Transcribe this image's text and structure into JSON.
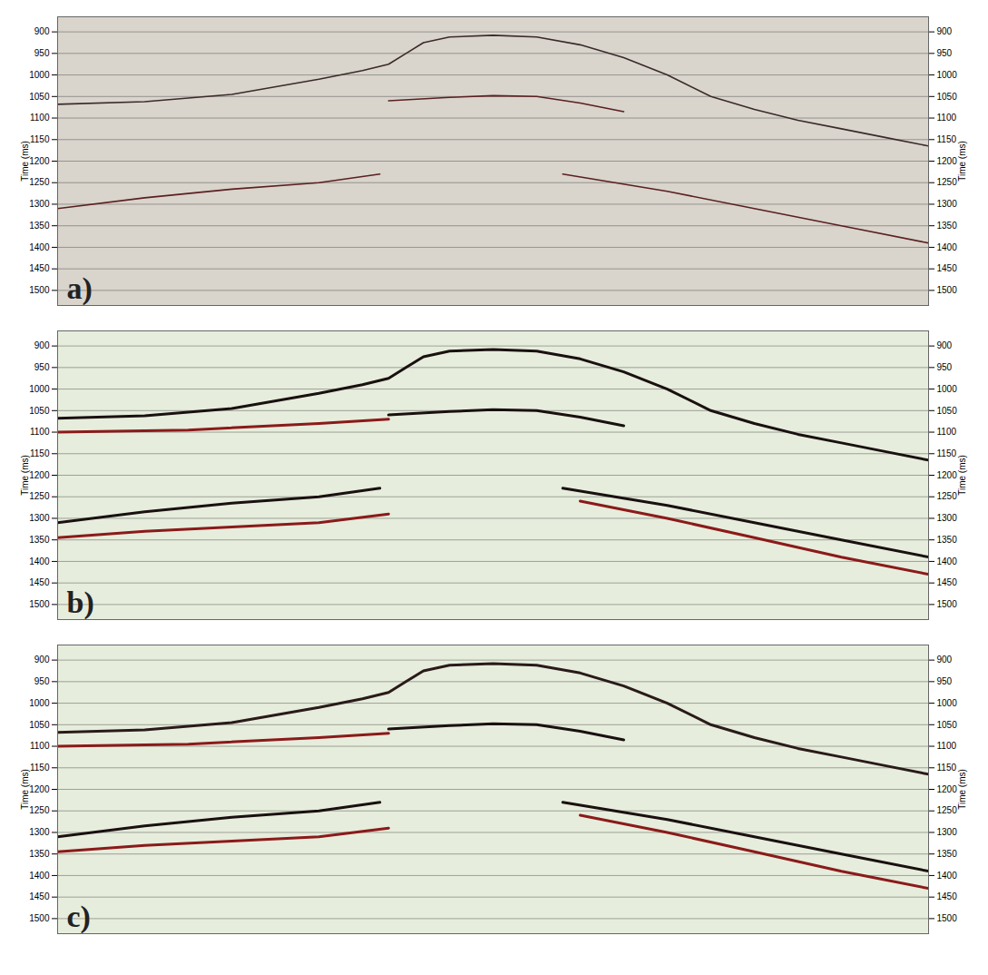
{
  "chart_data": [
    {
      "type": "line",
      "label": "a)",
      "ylabel": "Time (ms)",
      "xlim": [
        0,
        100
      ],
      "ylim": [
        865,
        1535
      ],
      "yticks": [
        900,
        950,
        1000,
        1050,
        1100,
        1150,
        1200,
        1250,
        1300,
        1350,
        1400,
        1450,
        1500
      ],
      "grid": true,
      "tick_labels": "y",
      "series": [
        {
          "color": "#3a2a2a",
          "x": [
            0,
            10,
            20,
            30,
            35,
            38,
            40,
            42,
            45,
            50,
            55,
            60,
            65,
            70,
            75,
            80,
            85,
            90,
            95,
            100
          ],
          "values": [
            1068,
            1062,
            1045,
            1010,
            990,
            975,
            950,
            925,
            912,
            908,
            912,
            930,
            960,
            1000,
            1050,
            1080,
            1105,
            1125,
            1145,
            1165
          ]
        },
        {
          "color": "#5a2020",
          "x": [
            38,
            45,
            50,
            55,
            60,
            65
          ],
          "values": [
            1060,
            1052,
            1048,
            1050,
            1065,
            1085
          ]
        },
        {
          "color": "#5a2020",
          "x": [
            0,
            10,
            20,
            30,
            37
          ],
          "values": [
            1310,
            1285,
            1265,
            1250,
            1230
          ]
        },
        {
          "color": "#5a2020",
          "x": [
            58,
            70,
            80,
            90,
            100
          ],
          "values": [
            1230,
            1270,
            1310,
            1350,
            1390
          ]
        }
      ]
    },
    {
      "type": "line",
      "label": "b)",
      "ylabel": "Time (ms)",
      "xlim": [
        0,
        100
      ],
      "ylim": [
        865,
        1535
      ],
      "yticks": [
        900,
        950,
        1000,
        1050,
        1100,
        1150,
        1200,
        1250,
        1300,
        1350,
        1400,
        1450,
        1500
      ],
      "grid": true,
      "tick_labels": "y",
      "series": [
        {
          "color": "#1a1010",
          "x": [
            0,
            10,
            20,
            30,
            35,
            38,
            40,
            42,
            45,
            50,
            55,
            60,
            65,
            70,
            75,
            80,
            85,
            90,
            95,
            100
          ],
          "values": [
            1068,
            1062,
            1045,
            1010,
            990,
            975,
            950,
            925,
            912,
            908,
            912,
            930,
            960,
            1000,
            1050,
            1080,
            1105,
            1125,
            1145,
            1165
          ]
        },
        {
          "color": "#8b1a1a",
          "x": [
            0,
            15,
            30,
            38
          ],
          "values": [
            1100,
            1095,
            1080,
            1070
          ]
        },
        {
          "color": "#1a1010",
          "x": [
            38,
            45,
            50,
            55,
            60,
            65
          ],
          "values": [
            1060,
            1052,
            1048,
            1050,
            1065,
            1085
          ]
        },
        {
          "color": "#1a1010",
          "x": [
            0,
            10,
            20,
            30,
            37
          ],
          "values": [
            1310,
            1285,
            1265,
            1250,
            1230
          ]
        },
        {
          "color": "#8b1a1a",
          "x": [
            0,
            10,
            20,
            30,
            38
          ],
          "values": [
            1345,
            1330,
            1320,
            1310,
            1290
          ]
        },
        {
          "color": "#1a1010",
          "x": [
            58,
            70,
            80,
            90,
            100
          ],
          "values": [
            1230,
            1270,
            1310,
            1350,
            1390
          ]
        },
        {
          "color": "#8b1a1a",
          "x": [
            60,
            70,
            80,
            90,
            100
          ],
          "values": [
            1260,
            1300,
            1345,
            1390,
            1430
          ]
        }
      ]
    },
    {
      "type": "line",
      "label": "c)",
      "ylabel": "Time (ms)",
      "xlim": [
        0,
        100
      ],
      "ylim": [
        865,
        1535
      ],
      "yticks": [
        900,
        950,
        1000,
        1050,
        1100,
        1150,
        1200,
        1250,
        1300,
        1350,
        1400,
        1450,
        1500
      ],
      "grid": true,
      "tick_labels": "y",
      "series": [
        {
          "color": "#2a1a1a",
          "x": [
            0,
            10,
            20,
            30,
            35,
            38,
            40,
            42,
            45,
            50,
            55,
            60,
            65,
            70,
            75,
            80,
            85,
            90,
            95,
            100
          ],
          "values": [
            1068,
            1062,
            1045,
            1010,
            990,
            975,
            950,
            925,
            912,
            908,
            912,
            930,
            960,
            1000,
            1050,
            1080,
            1105,
            1125,
            1145,
            1165
          ]
        },
        {
          "color": "#8b1a1a",
          "x": [
            0,
            15,
            30,
            38
          ],
          "values": [
            1100,
            1095,
            1080,
            1070
          ]
        },
        {
          "color": "#1a1010",
          "x": [
            38,
            45,
            50,
            55,
            60,
            65
          ],
          "values": [
            1060,
            1052,
            1048,
            1050,
            1065,
            1085
          ]
        },
        {
          "color": "#1a1010",
          "x": [
            0,
            10,
            20,
            30,
            37
          ],
          "values": [
            1310,
            1285,
            1265,
            1250,
            1230
          ]
        },
        {
          "color": "#8b1a1a",
          "x": [
            0,
            10,
            20,
            30,
            38
          ],
          "values": [
            1345,
            1330,
            1320,
            1310,
            1290
          ]
        },
        {
          "color": "#1a1010",
          "x": [
            58,
            70,
            80,
            90,
            100
          ],
          "values": [
            1230,
            1270,
            1310,
            1350,
            1390
          ]
        },
        {
          "color": "#8b1a1a",
          "x": [
            60,
            70,
            80,
            90,
            100
          ],
          "values": [
            1260,
            1300,
            1345,
            1390,
            1430
          ]
        }
      ]
    }
  ]
}
